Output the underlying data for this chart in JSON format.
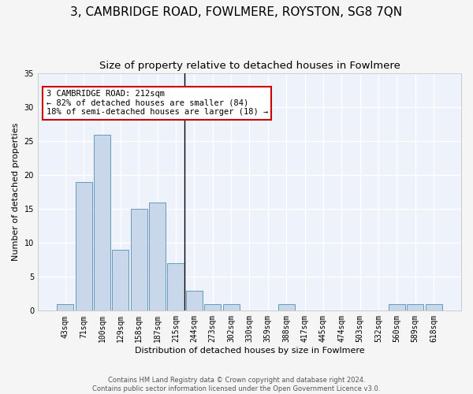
{
  "title": "3, CAMBRIDGE ROAD, FOWLMERE, ROYSTON, SG8 7QN",
  "subtitle": "Size of property relative to detached houses in Fowlmere",
  "xlabel": "Distribution of detached houses by size in Fowlmere",
  "ylabel": "Number of detached properties",
  "bar_color": "#c8d8ea",
  "bar_edge_color": "#6699bb",
  "background_color": "#eef2fb",
  "grid_color": "#ffffff",
  "bin_labels": [
    "43sqm",
    "71sqm",
    "100sqm",
    "129sqm",
    "158sqm",
    "187sqm",
    "215sqm",
    "244sqm",
    "273sqm",
    "302sqm",
    "330sqm",
    "359sqm",
    "388sqm",
    "417sqm",
    "445sqm",
    "474sqm",
    "503sqm",
    "532sqm",
    "560sqm",
    "589sqm",
    "618sqm"
  ],
  "bin_values": [
    1,
    19,
    26,
    9,
    15,
    16,
    7,
    3,
    1,
    1,
    0,
    0,
    1,
    0,
    0,
    0,
    0,
    0,
    1,
    1,
    1
  ],
  "annotation_text": "3 CAMBRIDGE ROAD: 212sqm\n← 82% of detached houses are smaller (84)\n18% of semi-detached houses are larger (18) →",
  "vline_color": "#000000",
  "annotation_box_color": "#ffffff",
  "annotation_box_edge_color": "#cc0000",
  "ylim": [
    0,
    35
  ],
  "yticks": [
    0,
    5,
    10,
    15,
    20,
    25,
    30,
    35
  ],
  "footer_text": "Contains HM Land Registry data © Crown copyright and database right 2024.\nContains public sector information licensed under the Open Government Licence v3.0.",
  "title_fontsize": 11,
  "subtitle_fontsize": 9.5,
  "annotation_fontsize": 7.5,
  "axis_label_fontsize": 8,
  "tick_fontsize": 7,
  "footer_fontsize": 6
}
